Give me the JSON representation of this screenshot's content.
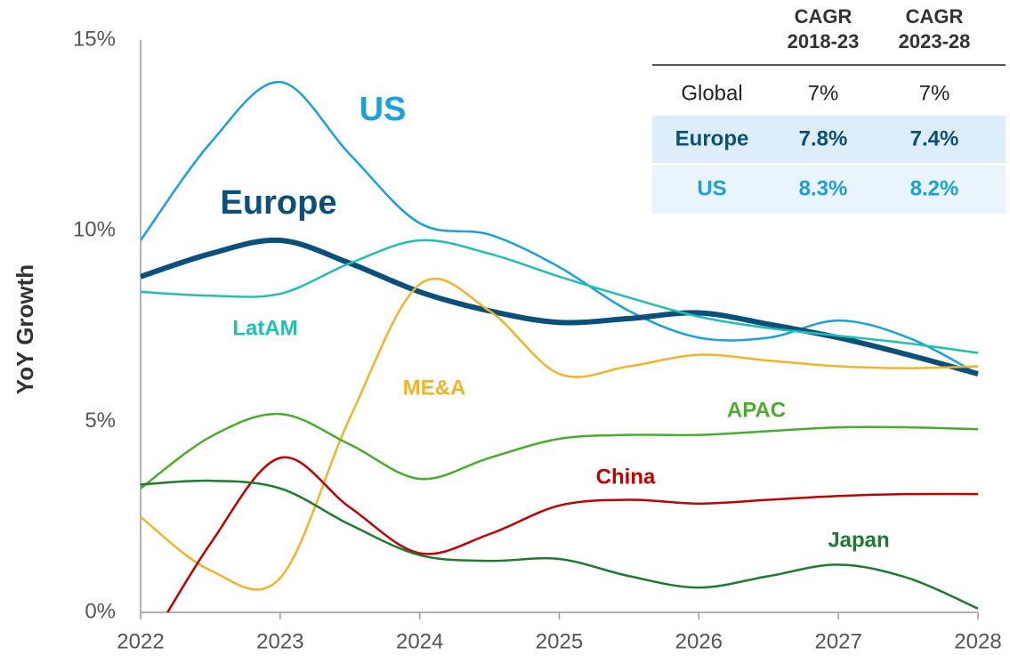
{
  "chart_data": {
    "type": "line",
    "ylabel": "YoY Growth",
    "x": [
      2022,
      2022.5,
      2023,
      2023.5,
      2024,
      2024.5,
      2025,
      2025.5,
      2026,
      2026.5,
      2027,
      2027.5,
      2028
    ],
    "xlim": [
      2022,
      2028
    ],
    "xticks": [
      2022,
      2023,
      2024,
      2025,
      2026,
      2027,
      2028
    ],
    "ylim": [
      0,
      15
    ],
    "yticks": [
      {
        "value": 0,
        "label": "0%"
      },
      {
        "value": 5,
        "label": "5%"
      },
      {
        "value": 10,
        "label": "10%"
      },
      {
        "value": 15,
        "label": "15%"
      }
    ],
    "series": [
      {
        "name": "US",
        "color": "#1aa0dc",
        "values": [
          9.75,
          12.3,
          13.9,
          12.0,
          10.2,
          9.9,
          9.05,
          7.9,
          7.2,
          7.2,
          7.65,
          7.2,
          6.25
        ]
      },
      {
        "name": "Europe",
        "color": "#0b4f7c",
        "values": [
          8.8,
          9.4,
          9.75,
          9.15,
          8.4,
          7.9,
          7.6,
          7.7,
          7.85,
          7.55,
          7.2,
          6.75,
          6.25
        ]
      },
      {
        "name": "LatAM",
        "color": "#20bfb0",
        "values": [
          8.4,
          8.3,
          8.35,
          9.15,
          9.75,
          9.4,
          8.8,
          8.25,
          7.75,
          7.45,
          7.25,
          7.05,
          6.8
        ]
      },
      {
        "name": "ME&A",
        "color": "#f0b429",
        "values": [
          2.5,
          1.1,
          0.9,
          5.1,
          8.6,
          7.9,
          6.25,
          6.45,
          6.75,
          6.6,
          6.45,
          6.4,
          6.45
        ]
      },
      {
        "name": "APAC",
        "color": "#4aac2e",
        "values": [
          3.25,
          4.6,
          5.2,
          4.4,
          3.5,
          4.05,
          4.55,
          4.65,
          4.65,
          4.75,
          4.85,
          4.85,
          4.8
        ]
      },
      {
        "name": "China",
        "color": "#c00000",
        "values": [
          -1.2,
          1.8,
          4.05,
          2.75,
          1.55,
          2.05,
          2.8,
          2.95,
          2.85,
          2.95,
          3.05,
          3.1,
          3.1
        ]
      },
      {
        "name": "Japan",
        "color": "#1e7a2e",
        "values": [
          3.35,
          3.45,
          3.25,
          2.3,
          1.5,
          1.35,
          1.4,
          0.95,
          0.65,
          0.95,
          1.25,
          0.9,
          0.1
        ]
      }
    ],
    "table": {
      "columns": [
        [
          "CAGR",
          "2018-23"
        ],
        [
          "CAGR",
          "2023-28"
        ]
      ],
      "rows": [
        [
          "Global",
          "7%",
          "7%"
        ],
        [
          "Europe",
          "7.8%",
          "7.4%"
        ],
        [
          "US",
          "8.3%",
          "8.2%"
        ]
      ]
    }
  }
}
